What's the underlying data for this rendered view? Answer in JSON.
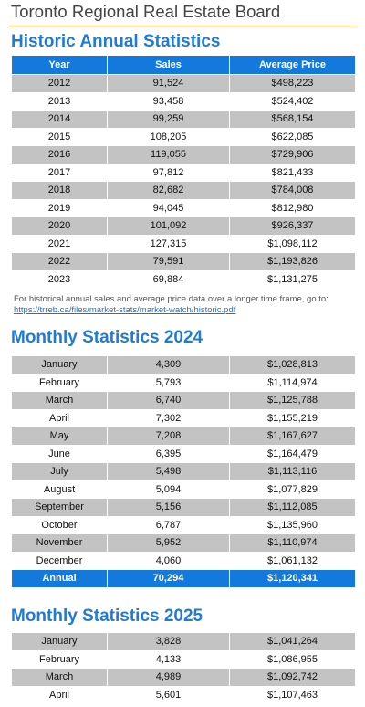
{
  "header": {
    "board_title": "Toronto Regional Real Estate Board"
  },
  "historic": {
    "title": "Historic Annual Statistics",
    "columns": [
      "Year",
      "Sales",
      "Average Price"
    ],
    "rows": [
      [
        "2012",
        "91,524",
        "$498,223"
      ],
      [
        "2013",
        "93,458",
        "$524,402"
      ],
      [
        "2014",
        "99,259",
        "$568,154"
      ],
      [
        "2015",
        "108,205",
        "$622,085"
      ],
      [
        "2016",
        "119,055",
        "$729,906"
      ],
      [
        "2017",
        "97,812",
        "$821,433"
      ],
      [
        "2018",
        "82,682",
        "$784,008"
      ],
      [
        "2019",
        "94,045",
        "$812,980"
      ],
      [
        "2020",
        "101,092",
        "$926,337"
      ],
      [
        "2021",
        "127,315",
        "$1,098,112"
      ],
      [
        "2022",
        "79,591",
        "$1,193,826"
      ],
      [
        "2023",
        "69,884",
        "$1,131,275"
      ]
    ],
    "note": "For historical annual sales and average price data over a longer time frame, go to:",
    "link": "https://trreb.ca/files/market-stats/market-watch/historic.pdf"
  },
  "monthly2024": {
    "title": "Monthly Statistics 2024",
    "rows": [
      [
        "January",
        "4,309",
        "$1,028,813"
      ],
      [
        "February",
        "5,793",
        "$1,114,974"
      ],
      [
        "March",
        "6,740",
        "$1,125,788"
      ],
      [
        "April",
        "7,302",
        "$1,155,219"
      ],
      [
        "May",
        "7,208",
        "$1,167,627"
      ],
      [
        "June",
        "6,395",
        "$1,164,479"
      ],
      [
        "July",
        "5,498",
        "$1,113,116"
      ],
      [
        "August",
        "5,094",
        "$1,077,829"
      ],
      [
        "September",
        "5,156",
        "$1,112,085"
      ],
      [
        "October",
        "6,787",
        "$1,135,960"
      ],
      [
        "November",
        "5,952",
        "$1,110,974"
      ],
      [
        "December",
        "4,060",
        "$1,061,132"
      ]
    ],
    "total": [
      "Annual",
      "70,294",
      "$1,120,341"
    ]
  },
  "monthly2025": {
    "title": "Monthly Statistics 2025",
    "rows": [
      [
        "January",
        "3,828",
        "$1,041,264"
      ],
      [
        "February",
        "4,133",
        "$1,086,955"
      ],
      [
        "March",
        "4,989",
        "$1,092,742"
      ],
      [
        "April",
        "5,601",
        "$1,107,463"
      ]
    ]
  }
}
